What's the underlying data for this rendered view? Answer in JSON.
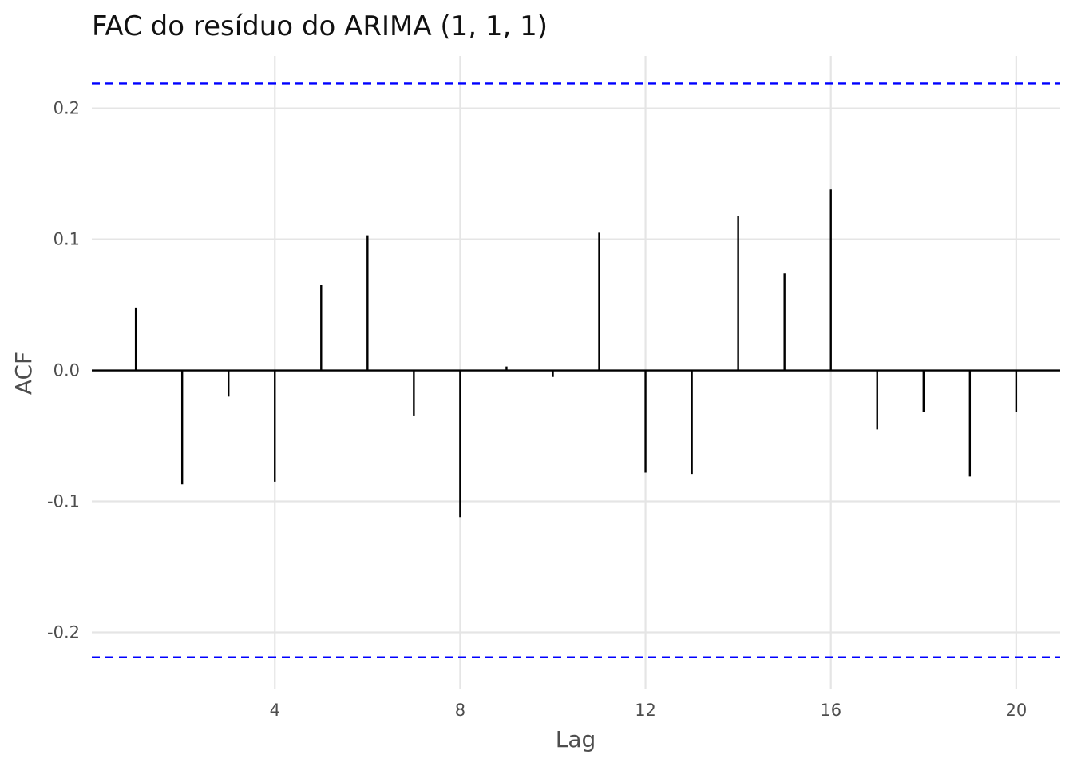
{
  "chart_data": {
    "type": "bar",
    "title": "FAC do resíduo do ARIMA (1, 1, 1)",
    "xlabel": "Lag",
    "ylabel": "ACF",
    "x": [
      1,
      2,
      3,
      4,
      5,
      6,
      7,
      8,
      9,
      10,
      11,
      12,
      13,
      14,
      15,
      16,
      17,
      18,
      19,
      20
    ],
    "values": [
      0.048,
      -0.087,
      -0.02,
      -0.085,
      0.065,
      0.103,
      -0.035,
      -0.112,
      0.003,
      -0.005,
      0.105,
      -0.078,
      -0.079,
      0.118,
      0.074,
      0.138,
      -0.045,
      -0.032,
      -0.081,
      -0.032
    ],
    "x_ticks": [
      4,
      8,
      12,
      16,
      20
    ],
    "x_tick_labels": [
      "4",
      "8",
      "12",
      "16",
      "20"
    ],
    "y_ticks": [
      -0.2,
      -0.1,
      0.0,
      0.1,
      0.2
    ],
    "y_tick_labels": [
      "-0.2",
      "-0.1",
      "0.0",
      "0.1",
      "0.2"
    ],
    "xlim": [
      0.05,
      20.95
    ],
    "ylim": [
      -0.243,
      0.24
    ],
    "confidence_bounds": [
      0.219,
      -0.219
    ],
    "colors": {
      "bars": "#000000",
      "confidence_bounds": "#0000ff",
      "grid": "#e5e5e5"
    },
    "grid": true,
    "legend": "none"
  }
}
